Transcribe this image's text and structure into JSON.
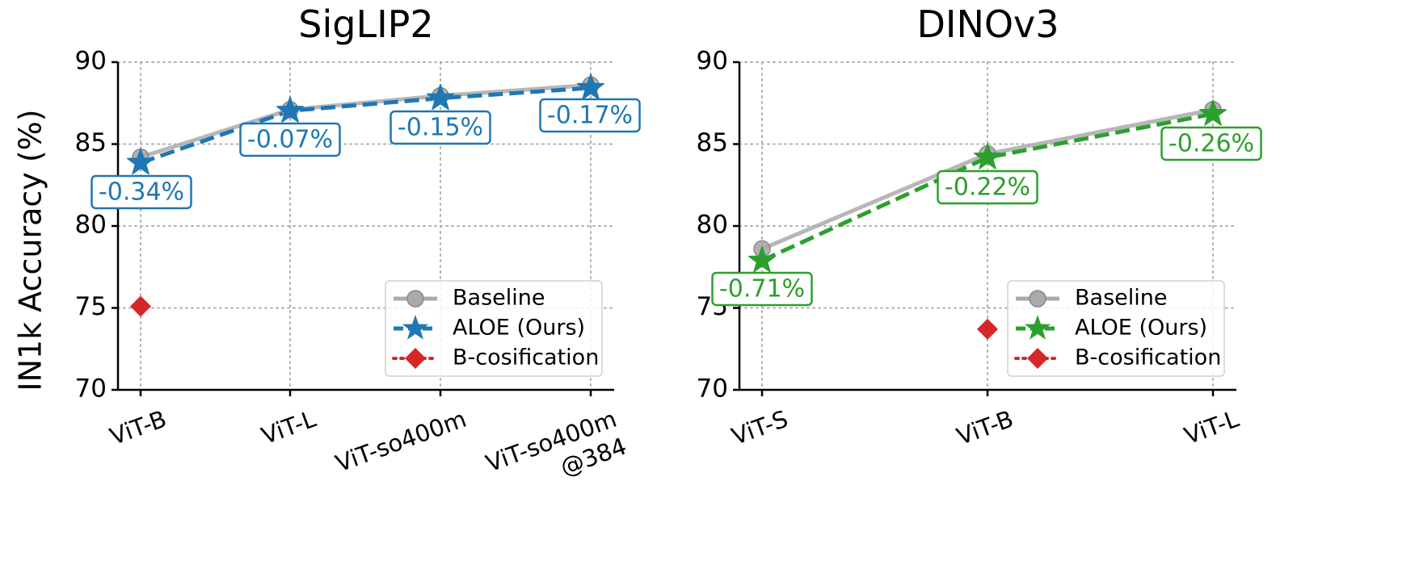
{
  "figure": {
    "ylabel": "IN1k Accuracy (%)"
  },
  "legend_labels": [
    "Baseline",
    "ALOE (Ours)",
    "B-cosification"
  ],
  "colors": {
    "baseline": "#aaaaaa",
    "siglip": "#1f77b4",
    "dino": "#2ca02c",
    "bcos": "#d62728"
  },
  "chart_data": [
    {
      "type": "line",
      "title": "SigLIP2",
      "ylabel": "IN1k Accuracy (%)",
      "categories": [
        "ViT-B",
        "ViT-L",
        "ViT-so400m",
        "ViT-so400m\n@384"
      ],
      "ylim": [
        70,
        90
      ],
      "yticks": [
        70,
        75,
        80,
        85,
        90
      ],
      "grid": true,
      "legend_position": "lower-right",
      "series": [
        {
          "name": "Baseline",
          "marker": "circle",
          "values": [
            84.2,
            87.1,
            87.95,
            88.6
          ]
        },
        {
          "name": "ALOE (Ours)",
          "marker": "star",
          "values": [
            83.86,
            87.03,
            87.8,
            88.43
          ]
        },
        {
          "name": "B-cosification",
          "marker": "diamond",
          "values": [
            75.1,
            null,
            null,
            null
          ]
        }
      ],
      "annotations": [
        "-0.34%",
        "-0.07%",
        "-0.15%",
        "-0.17%"
      ]
    },
    {
      "type": "line",
      "title": "DINOv3",
      "ylabel": "",
      "categories": [
        "ViT-S",
        "ViT-B",
        "ViT-L"
      ],
      "ylim": [
        70,
        90
      ],
      "yticks": [
        70,
        75,
        80,
        85,
        90
      ],
      "grid": true,
      "legend_position": "lower-right",
      "series": [
        {
          "name": "Baseline",
          "marker": "circle",
          "values": [
            78.6,
            84.4,
            87.1
          ]
        },
        {
          "name": "ALOE (Ours)",
          "marker": "star",
          "values": [
            77.89,
            84.18,
            86.84
          ]
        },
        {
          "name": "B-cosification",
          "marker": "diamond",
          "values": [
            null,
            73.7,
            null
          ]
        }
      ],
      "annotations": [
        "-0.71%",
        "-0.22%",
        "-0.26%"
      ]
    }
  ]
}
